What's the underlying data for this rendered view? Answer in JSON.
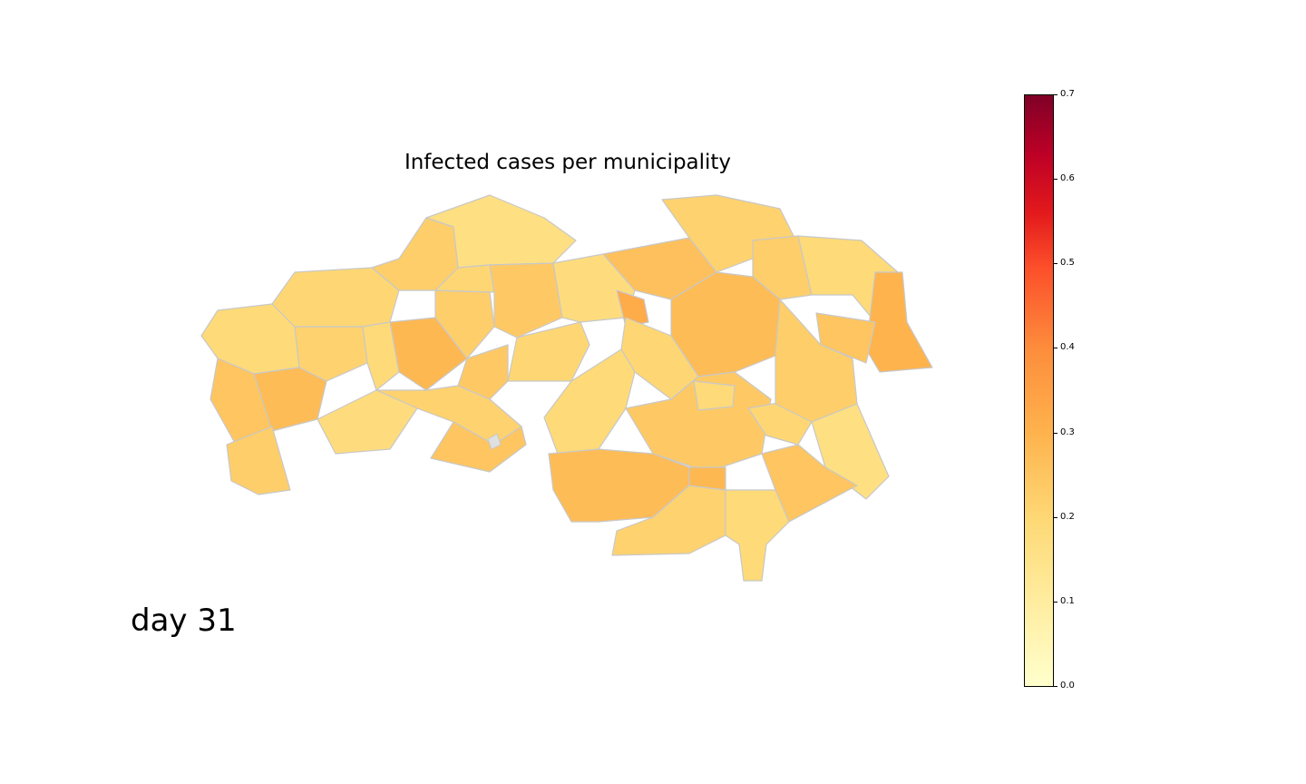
{
  "title": "Infected cases per municipality",
  "day_label": "day 31",
  "colorbar": {
    "min": 0.0,
    "max": 0.7,
    "ticks": [
      "0.0",
      "0.1",
      "0.2",
      "0.3",
      "0.4",
      "0.5",
      "0.6",
      "0.7"
    ],
    "colormap": "YlOrRd",
    "colors": [
      "#ffffcc",
      "#ffeda0",
      "#fed976",
      "#feb24c",
      "#fd8d3c",
      "#fc4e2a",
      "#e31a1c",
      "#bd0026",
      "#800026"
    ]
  },
  "styles": {
    "border_color": "#c8c8c8",
    "missing_color": "#e0e0e0"
  },
  "regions_values": [
    0.17,
    0.18,
    0.2,
    0.15,
    0.22,
    0.24,
    0.19,
    0.17,
    0.25,
    0.2,
    0.18,
    0.21,
    0.16,
    0.23,
    0.28,
    0.19,
    0.2,
    0.17,
    0.26,
    0.22,
    0.18,
    0.21,
    0.19,
    0.16,
    0.2,
    0.22,
    0.24,
    0.18,
    0.17,
    0.21
  ]
}
